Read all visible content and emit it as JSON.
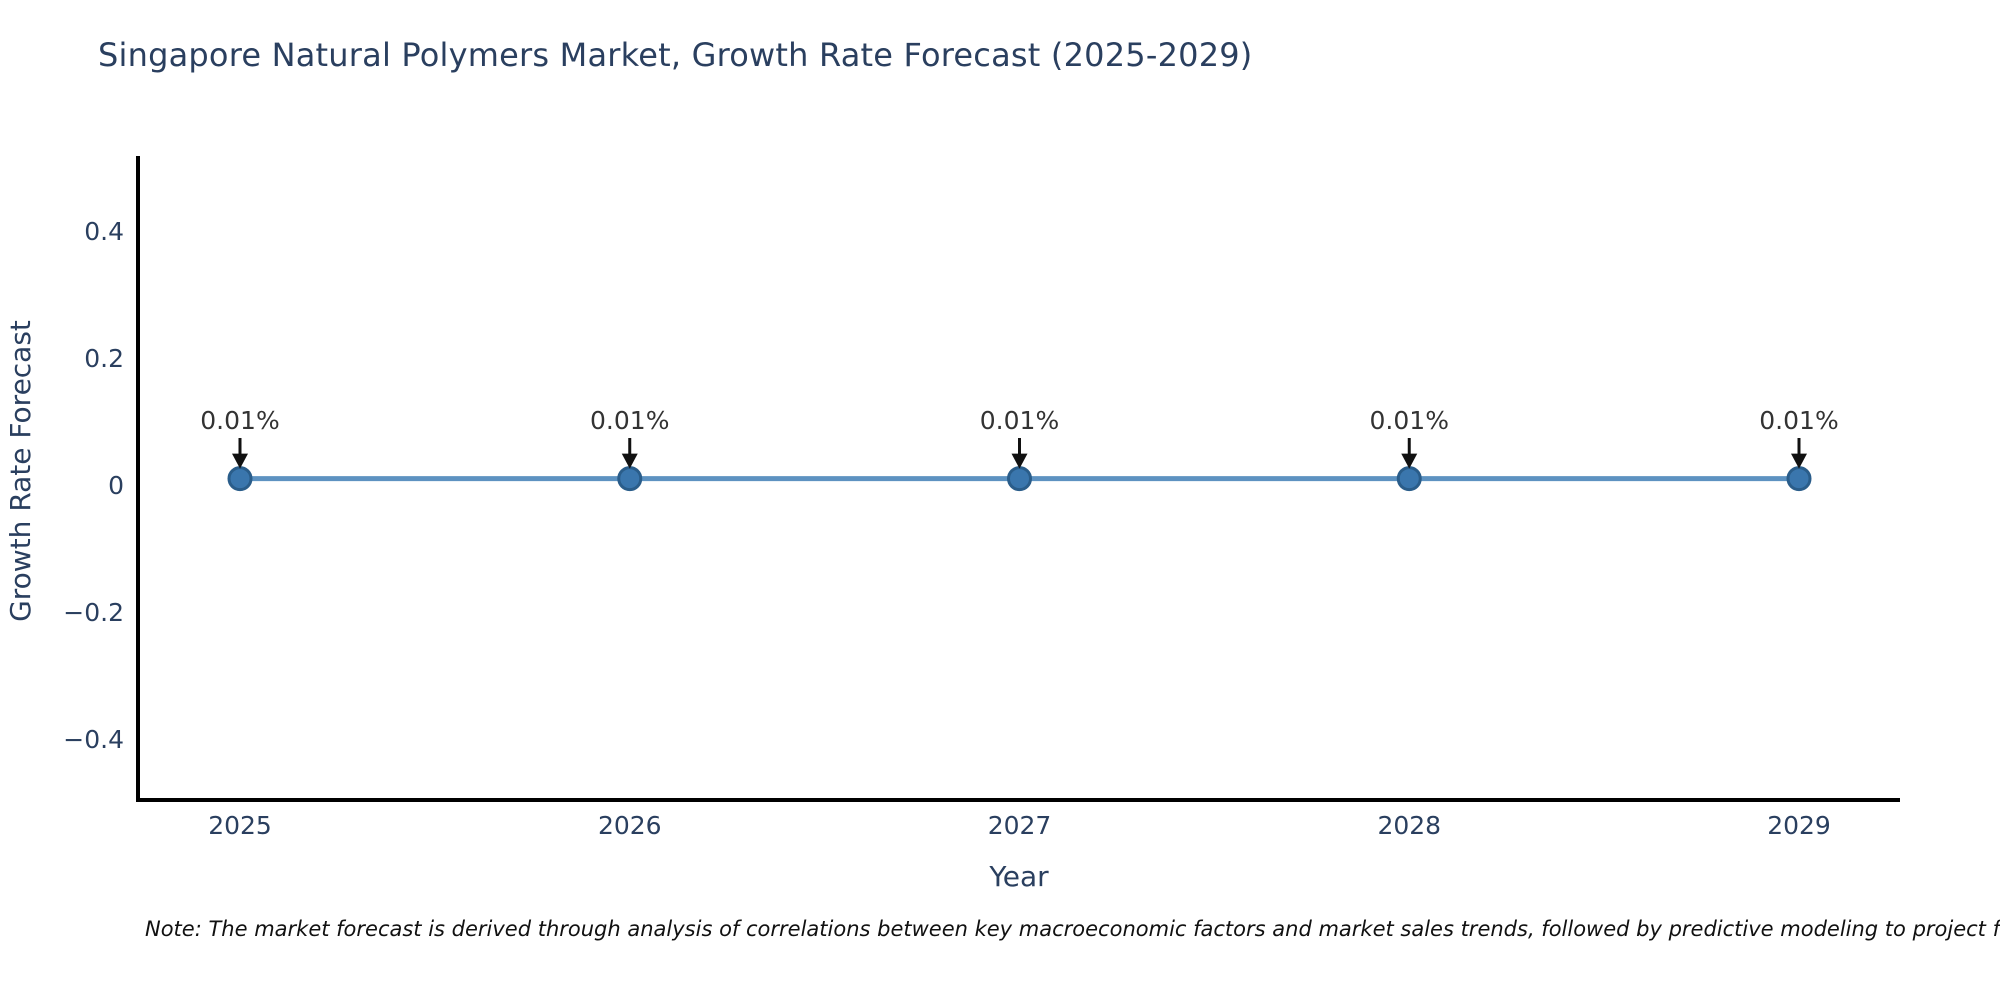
{
  "page": {
    "title": "Singapore Natural Polymers Market, Growth Rate Forecast (2025-2029)",
    "note": "Note: The market forecast is derived through analysis of correlations between key macroeconomic factors and market sales trends, followed by predictive modeling to project future sa"
  },
  "chart_data": {
    "type": "line",
    "title": "Singapore Natural Polymers Market, Growth Rate Forecast (2025-2029)",
    "xlabel": "Year",
    "ylabel": "Growth Rate Forecast",
    "x": [
      2025,
      2026,
      2027,
      2028,
      2029
    ],
    "series": [
      {
        "name": "Growth Rate Forecast",
        "values": [
          0.01,
          0.01,
          0.01,
          0.01,
          0.01
        ]
      }
    ],
    "point_labels": [
      "0.01%",
      "0.01%",
      "0.01%",
      "0.01%",
      "0.01%"
    ],
    "xtick_labels": [
      "2025",
      "2026",
      "2027",
      "2028",
      "2029"
    ],
    "yticks": {
      "values": [
        0.4,
        0.2,
        0,
        -0.2,
        -0.4
      ],
      "labels": [
        "0.4",
        "0.2",
        "0",
        "−0.2",
        "−0.4"
      ]
    },
    "ylim": [
      -0.5,
      0.52
    ],
    "grid": false,
    "legend": "none",
    "annotations_style": "down-arrow-to-point",
    "colors": {
      "line": "#5d92c1",
      "marker_fill": "#3a76ad",
      "marker_edge": "#2a5d8a",
      "axis_line": "#000000",
      "tick_text": "#2a3f5f",
      "axis_title_text": "#2a3f5f",
      "title_text": "#2a3f5f",
      "annotation_text": "#333333",
      "arrow": "#111111",
      "note_text": "#111111",
      "background": "#ffffff"
    }
  }
}
